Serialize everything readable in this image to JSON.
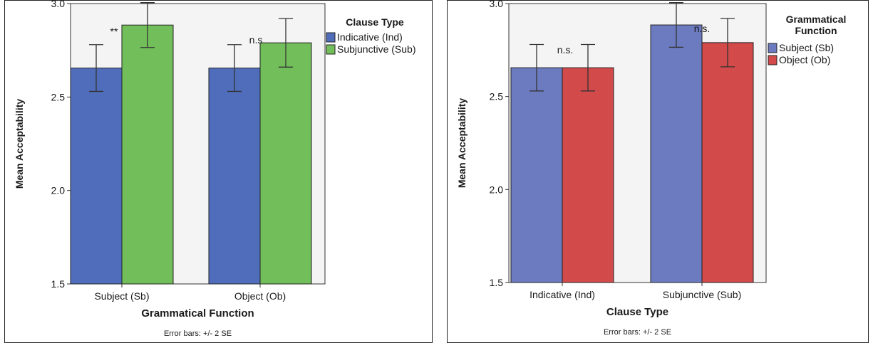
{
  "chart_data": [
    {
      "type": "bar",
      "xlabel": "Grammatical Function",
      "ylabel": "Mean Acceptability",
      "ylim": [
        1.5,
        3.0
      ],
      "yticks": [
        "1.5",
        "2.0",
        "2.5",
        "3.0"
      ],
      "categories": [
        "Subject (Sb)",
        "Object (Ob)"
      ],
      "series": [
        {
          "name": "Indicative (Ind)",
          "values": [
            2.655,
            2.655
          ],
          "error": [
            0.125,
            0.125
          ],
          "color": "#4f6dbb"
        },
        {
          "name": "Subjunctive (Sub)",
          "values": [
            2.885,
            2.79
          ],
          "error": [
            0.12,
            0.13
          ],
          "color": "#72be5a"
        }
      ],
      "legend_title": "Clause Type",
      "legend_position": "right",
      "annotations": [
        "**",
        "n.s"
      ],
      "footnote": "Error bars: +/- 2 SE",
      "grid": false
    },
    {
      "type": "bar",
      "xlabel": "Clause Type",
      "ylabel": "Mean Acceptability",
      "ylim": [
        1.5,
        3.0
      ],
      "yticks": [
        "1.5",
        "2.0",
        "2.5",
        "3.0"
      ],
      "categories": [
        "Indicative (Ind)",
        "Subjunctive (Sub)"
      ],
      "series": [
        {
          "name": "Subject (Sb)",
          "values": [
            2.655,
            2.885
          ],
          "error": [
            0.125,
            0.12
          ],
          "color": "#6c7bbf"
        },
        {
          "name": "Object (Ob)",
          "values": [
            2.655,
            2.79
          ],
          "error": [
            0.125,
            0.13
          ],
          "color": "#d24a4a"
        }
      ],
      "legend_title": "Grammatical Function",
      "legend_position": "right",
      "annotations": [
        "n.s.",
        "n.s."
      ],
      "footnote": "Error bars: +/- 2 SE",
      "grid": false
    }
  ]
}
